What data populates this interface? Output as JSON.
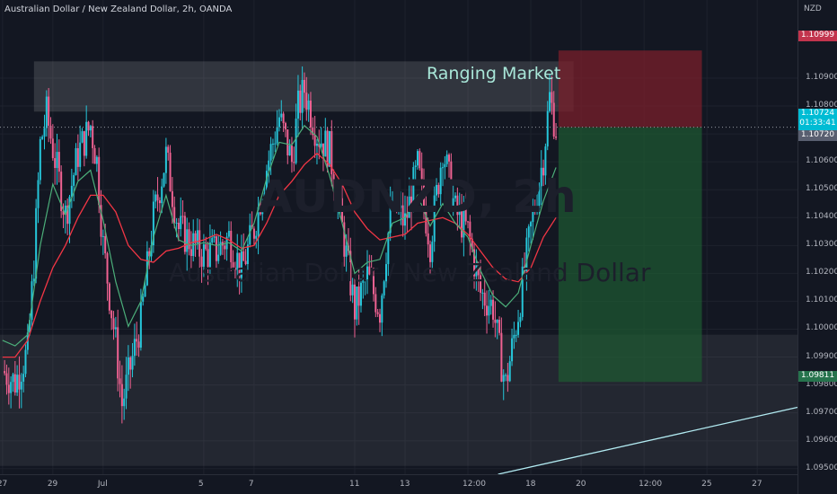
{
  "header": {
    "title": "Australian Dollar / New Zealand Dollar, 2h, OANDA",
    "currency": "NZD"
  },
  "watermark": {
    "symbol": "AUDNZD, 2h",
    "description": "Australian Dollar / New Zealand Dollar"
  },
  "annotation": {
    "range_text": "Ranging Market"
  },
  "price_tags": {
    "target": "1.10999",
    "current_price": "1.10724",
    "countdown": "01:33:41",
    "open_price": "1.10720",
    "stop": "1.09811"
  },
  "colors": {
    "background": "#131722",
    "bull_candle": "#26c6da",
    "bear_candle": "#f06292",
    "ma_fast": "#4caf7a",
    "ma_slow": "#f23645",
    "profit_zone": "#1e5b32",
    "loss_zone": "#7a1f2b",
    "trendline": "#b2ebf2"
  },
  "chart_data": {
    "type": "candlestick",
    "symbol": "AUDNZD",
    "timeframe": "2h",
    "y_ticks": [
      "1.10900",
      "1.10800",
      "1.10700",
      "1.10600",
      "1.10500",
      "1.10400",
      "1.10300",
      "1.10200",
      "1.10100",
      "1.10000",
      "1.09900",
      "1.09800",
      "1.09700",
      "1.09600",
      "1.09500"
    ],
    "x_ticks": [
      "27",
      "29",
      "Jul",
      "5",
      "7",
      "11",
      "13",
      "12:00",
      "18",
      "20",
      "12:00",
      "25",
      "27"
    ],
    "x_tick_pos_days": [
      27,
      29,
      31,
      35,
      37,
      41,
      43,
      45.5,
      48,
      50,
      52.5,
      55,
      57
    ],
    "ylim": [
      1.0948,
      1.1118
    ],
    "xlim": [
      26.9,
      58.6
    ],
    "closes": [
      [
        27.0,
        1.0985
      ],
      [
        27.5,
        1.0981
      ],
      [
        28.0,
        1.0992
      ],
      [
        28.25,
        1.1024
      ],
      [
        28.5,
        1.1066
      ],
      [
        28.75,
        1.1077
      ],
      [
        29.0,
        1.1065
      ],
      [
        29.5,
        1.1041
      ],
      [
        30.0,
        1.1063
      ],
      [
        30.5,
        1.1073
      ],
      [
        30.75,
        1.106
      ],
      [
        31.0,
        1.103
      ],
      [
        31.5,
        1.0995
      ],
      [
        31.75,
        1.0973
      ],
      [
        32.0,
        1.0983
      ],
      [
        32.5,
        1.1003
      ],
      [
        33.0,
        1.104
      ],
      [
        33.5,
        1.1062
      ],
      [
        34.0,
        1.1036
      ],
      [
        34.5,
        1.1031
      ],
      [
        35.0,
        1.1027
      ],
      [
        35.5,
        1.1028
      ],
      [
        36.0,
        1.1033
      ],
      [
        36.5,
        1.1021
      ],
      [
        37.0,
        1.1036
      ],
      [
        37.5,
        1.1058
      ],
      [
        38.0,
        1.1076
      ],
      [
        38.5,
        1.106
      ],
      [
        38.75,
        1.1079
      ],
      [
        39.0,
        1.1086
      ],
      [
        39.5,
        1.107
      ],
      [
        40.0,
        1.1064
      ],
      [
        40.5,
        1.1036
      ],
      [
        41.0,
        1.1007
      ],
      [
        41.5,
        1.1019
      ],
      [
        42.0,
        1.1007
      ],
      [
        42.25,
        1.1029
      ],
      [
        42.5,
        1.1045
      ],
      [
        43.0,
        1.1038
      ],
      [
        43.5,
        1.1058
      ],
      [
        44.0,
        1.1031
      ],
      [
        44.5,
        1.1065
      ],
      [
        45.0,
        1.1042
      ],
      [
        45.5,
        1.1035
      ],
      [
        46.0,
        1.1013
      ],
      [
        46.5,
        1.1008
      ],
      [
        46.75,
        1.0992
      ],
      [
        47.0,
        1.098
      ],
      [
        47.5,
        1.1006
      ],
      [
        48.0,
        1.1036
      ],
      [
        48.5,
        1.1062
      ],
      [
        48.75,
        1.1083
      ],
      [
        49.0,
        1.1072
      ]
    ],
    "ma_fast": [
      [
        27.0,
        1.0996
      ],
      [
        27.5,
        1.0994
      ],
      [
        28.0,
        1.0998
      ],
      [
        28.5,
        1.103
      ],
      [
        29.0,
        1.1052
      ],
      [
        29.5,
        1.1041
      ],
      [
        30.0,
        1.1053
      ],
      [
        30.5,
        1.1057
      ],
      [
        31.0,
        1.1039
      ],
      [
        31.5,
        1.1017
      ],
      [
        32.0,
        1.1001
      ],
      [
        32.5,
        1.101
      ],
      [
        33.0,
        1.1033
      ],
      [
        33.5,
        1.1048
      ],
      [
        34.0,
        1.1032
      ],
      [
        34.5,
        1.103
      ],
      [
        35.0,
        1.1031
      ],
      [
        35.5,
        1.103
      ],
      [
        36.0,
        1.1031
      ],
      [
        36.5,
        1.1028
      ],
      [
        37.0,
        1.1038
      ],
      [
        37.5,
        1.1054
      ],
      [
        38.0,
        1.1067
      ],
      [
        38.5,
        1.1066
      ],
      [
        39.0,
        1.1073
      ],
      [
        39.5,
        1.1069
      ],
      [
        40.0,
        1.1055
      ],
      [
        40.5,
        1.1038
      ],
      [
        41.0,
        1.102
      ],
      [
        41.5,
        1.1024
      ],
      [
        42.0,
        1.1025
      ],
      [
        42.5,
        1.1038
      ],
      [
        43.0,
        1.104
      ],
      [
        43.5,
        1.1048
      ],
      [
        44.0,
        1.1037
      ],
      [
        44.5,
        1.1045
      ],
      [
        45.0,
        1.1038
      ],
      [
        45.5,
        1.1033
      ],
      [
        46.0,
        1.1021
      ],
      [
        46.5,
        1.1012
      ],
      [
        47.0,
        1.1008
      ],
      [
        47.5,
        1.1013
      ],
      [
        48.0,
        1.103
      ],
      [
        48.5,
        1.1046
      ],
      [
        49.0,
        1.1058
      ]
    ],
    "ma_slow": [
      [
        27.0,
        1.099
      ],
      [
        27.5,
        1.099
      ],
      [
        28.0,
        1.0996
      ],
      [
        28.5,
        1.101
      ],
      [
        29.0,
        1.1022
      ],
      [
        29.5,
        1.103
      ],
      [
        30.0,
        1.104
      ],
      [
        30.5,
        1.1048
      ],
      [
        31.0,
        1.1048
      ],
      [
        31.5,
        1.1042
      ],
      [
        32.0,
        1.103
      ],
      [
        32.5,
        1.1025
      ],
      [
        33.0,
        1.1024
      ],
      [
        33.5,
        1.1028
      ],
      [
        34.0,
        1.1029
      ],
      [
        34.5,
        1.1031
      ],
      [
        35.0,
        1.1032
      ],
      [
        35.5,
        1.1034
      ],
      [
        36.0,
        1.1032
      ],
      [
        36.5,
        1.1029
      ],
      [
        37.0,
        1.103
      ],
      [
        37.5,
        1.1038
      ],
      [
        38.0,
        1.1048
      ],
      [
        38.5,
        1.1053
      ],
      [
        39.0,
        1.1059
      ],
      [
        39.5,
        1.1063
      ],
      [
        40.0,
        1.1059
      ],
      [
        40.5,
        1.1052
      ],
      [
        41.0,
        1.1042
      ],
      [
        41.5,
        1.1036
      ],
      [
        42.0,
        1.1032
      ],
      [
        42.5,
        1.1033
      ],
      [
        43.0,
        1.1034
      ],
      [
        43.5,
        1.1038
      ],
      [
        44.0,
        1.1039
      ],
      [
        44.5,
        1.104
      ],
      [
        45.0,
        1.1038
      ],
      [
        45.5,
        1.1034
      ],
      [
        46.0,
        1.1028
      ],
      [
        46.5,
        1.1022
      ],
      [
        47.0,
        1.1018
      ],
      [
        47.5,
        1.1017
      ],
      [
        48.0,
        1.1022
      ],
      [
        48.5,
        1.1033
      ],
      [
        49.0,
        1.104
      ]
    ],
    "zones": {
      "range_top": [
        28.25,
        49.7,
        1.1096,
        1.1078
      ],
      "support": [
        26.9,
        58.6,
        1.0998,
        1.0951
      ]
    },
    "position": {
      "x_start": 49.1,
      "x_end": 54.8,
      "target": 1.10999,
      "entry": 1.10724,
      "stop": 1.09811
    },
    "trendline": [
      [
        46.7,
        1.0948
      ],
      [
        58.6,
        1.0972
      ]
    ],
    "current_price": 1.10724,
    "grid": true,
    "legend": "none"
  }
}
